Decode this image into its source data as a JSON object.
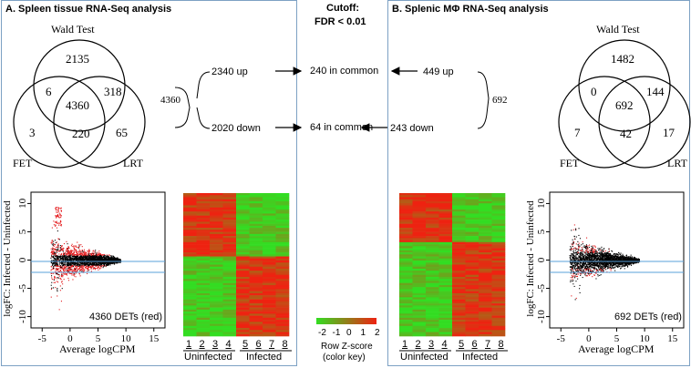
{
  "panel_a": {
    "title": "A. Spleen tissue RNA-Seq analysis",
    "venn": {
      "label_top": "Wald Test",
      "label_left": "FET",
      "label_right": "LRT",
      "only_top": "2135",
      "top_left": "6",
      "center": "4360",
      "top_right": "318",
      "only_left": "3",
      "left_right": "220",
      "only_right": "65"
    },
    "total": "4360",
    "up": "2340 up",
    "down": "2020 down",
    "ma_plot": {
      "ylabel": "logFC: Infected - Uninfected",
      "xlabel": "Average logCPM",
      "xticks": [
        "-5",
        "0",
        "5",
        "10",
        "15"
      ],
      "yticks": [
        "10",
        "5",
        "0",
        "-5",
        "-10"
      ],
      "annotation": "4360 DETs (red)"
    },
    "heatmap": {
      "sample_numbers": [
        "1",
        "2",
        "3",
        "4",
        "5",
        "6",
        "7",
        "8"
      ],
      "group_left": "Uninfected",
      "group_right": "Infected"
    }
  },
  "middle": {
    "cutoff_title": "Cutoff:",
    "cutoff_value": "FDR < 0.01",
    "common_up": "240 in common",
    "common_down": "64 in common",
    "color_key": {
      "ticks": [
        "-2",
        "-1",
        "0",
        "1",
        "2"
      ],
      "label1": "Row Z-score",
      "label2": "(color key)",
      "colors": [
        "#33dd22",
        "#ee2211"
      ]
    }
  },
  "panel_b": {
    "title": "B. Splenic MΦ RNA-Seq analysis",
    "venn": {
      "label_top": "Wald Test",
      "label_left": "FET",
      "label_right": "LRT",
      "only_top": "1482",
      "top_left": "0",
      "center": "692",
      "top_right": "144",
      "only_left": "7",
      "left_right": "42",
      "only_right": "17"
    },
    "total": "692",
    "up": "449 up",
    "down": "243 down",
    "ma_plot": {
      "ylabel": "logFC: Infected - Uninfected",
      "xlabel": "Average logCPM",
      "xticks": [
        "-5",
        "0",
        "5",
        "10",
        "15"
      ],
      "yticks": [
        "10",
        "5",
        "0",
        "-5",
        "-10"
      ],
      "annotation": "692 DETs (red)"
    },
    "heatmap": {
      "sample_numbers": [
        "1",
        "2",
        "3",
        "4",
        "5",
        "6",
        "7",
        "8"
      ],
      "group_left": "Uninfected",
      "group_right": "Infected"
    }
  },
  "colors": {
    "panel_border": "#7da1c4",
    "up_color": "#ee2211",
    "down_color": "#33dd22",
    "ref_line": "#5aa0d8"
  }
}
